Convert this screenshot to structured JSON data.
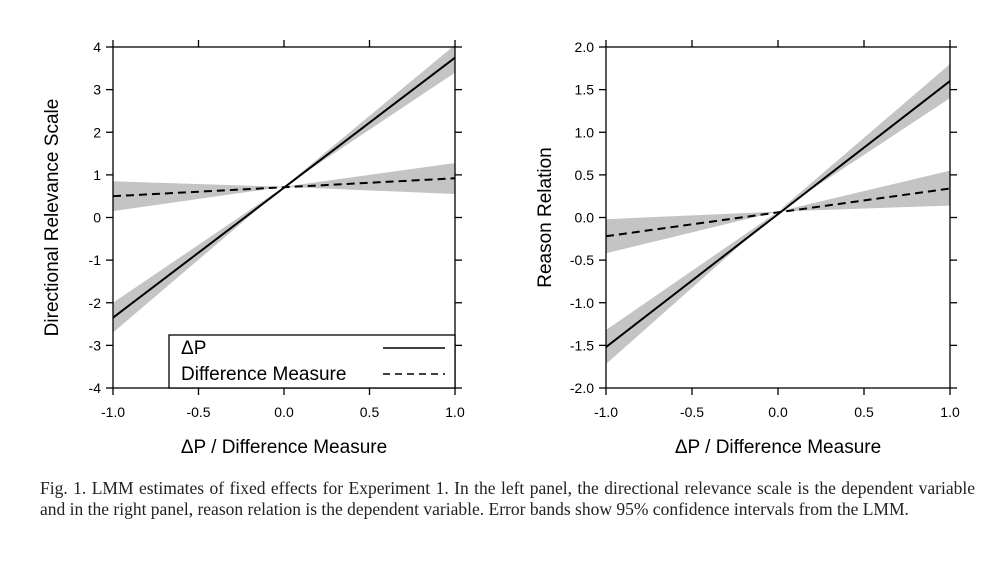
{
  "chart_data": [
    {
      "type": "line",
      "ylabel": "Directional Relevance Scale",
      "xlabel": "ΔP / Difference Measure",
      "xlim": [
        -1.0,
        1.0
      ],
      "ylim": [
        -4,
        4
      ],
      "x_ticks": [
        "-1.0",
        "-0.5",
        "0.0",
        "0.5",
        "1.0"
      ],
      "y_ticks": [
        "-4",
        "-3",
        "-2",
        "-1",
        "0",
        "1",
        "2",
        "3",
        "4"
      ],
      "legend": {
        "position": "bottom-right",
        "entries": [
          "ΔP",
          "Difference Measure"
        ]
      },
      "series": [
        {
          "name": "ΔP",
          "style": "solid",
          "x": [
            -1.0,
            1.0
          ],
          "y": [
            -2.35,
            3.75
          ],
          "lower": [
            -2.7,
            3.4
          ],
          "upper": [
            -2.0,
            4.05
          ]
        },
        {
          "name": "Difference Measure",
          "style": "dashed",
          "x": [
            -1.0,
            1.0
          ],
          "y": [
            0.5,
            0.92
          ],
          "lower": [
            0.15,
            0.55
          ],
          "upper": [
            0.85,
            1.28
          ]
        }
      ],
      "intersection": {
        "x": 0.0,
        "y": 0.72
      },
      "grid": false
    },
    {
      "type": "line",
      "ylabel": "Reason Relation",
      "xlabel": "ΔP / Difference Measure",
      "xlim": [
        -1.0,
        1.0
      ],
      "ylim": [
        -2.0,
        2.0
      ],
      "x_ticks": [
        "-1.0",
        "-0.5",
        "0.0",
        "0.5",
        "1.0"
      ],
      "y_ticks": [
        "-2.0",
        "-1.5",
        "-1.0",
        "-0.5",
        "0.0",
        "0.5",
        "1.0",
        "1.5",
        "2.0"
      ],
      "series": [
        {
          "name": "ΔP",
          "style": "solid",
          "x": [
            -1.0,
            1.0
          ],
          "y": [
            -1.52,
            1.6
          ],
          "lower": [
            -1.72,
            1.4
          ],
          "upper": [
            -1.32,
            1.8
          ]
        },
        {
          "name": "Difference Measure",
          "style": "dashed",
          "x": [
            -1.0,
            1.0
          ],
          "y": [
            -0.22,
            0.34
          ],
          "lower": [
            -0.42,
            0.14
          ],
          "upper": [
            -0.02,
            0.55
          ]
        }
      ],
      "intersection": {
        "x": 0.0,
        "y": 0.07
      },
      "grid": false
    }
  ],
  "caption": "Fig. 1.  LMM estimates of fixed effects for Experiment 1. In the left panel, the directional relevance scale is the dependent variable and in the right panel, reason relation is the dependent variable. Error bands show 95% confidence intervals from the LMM."
}
